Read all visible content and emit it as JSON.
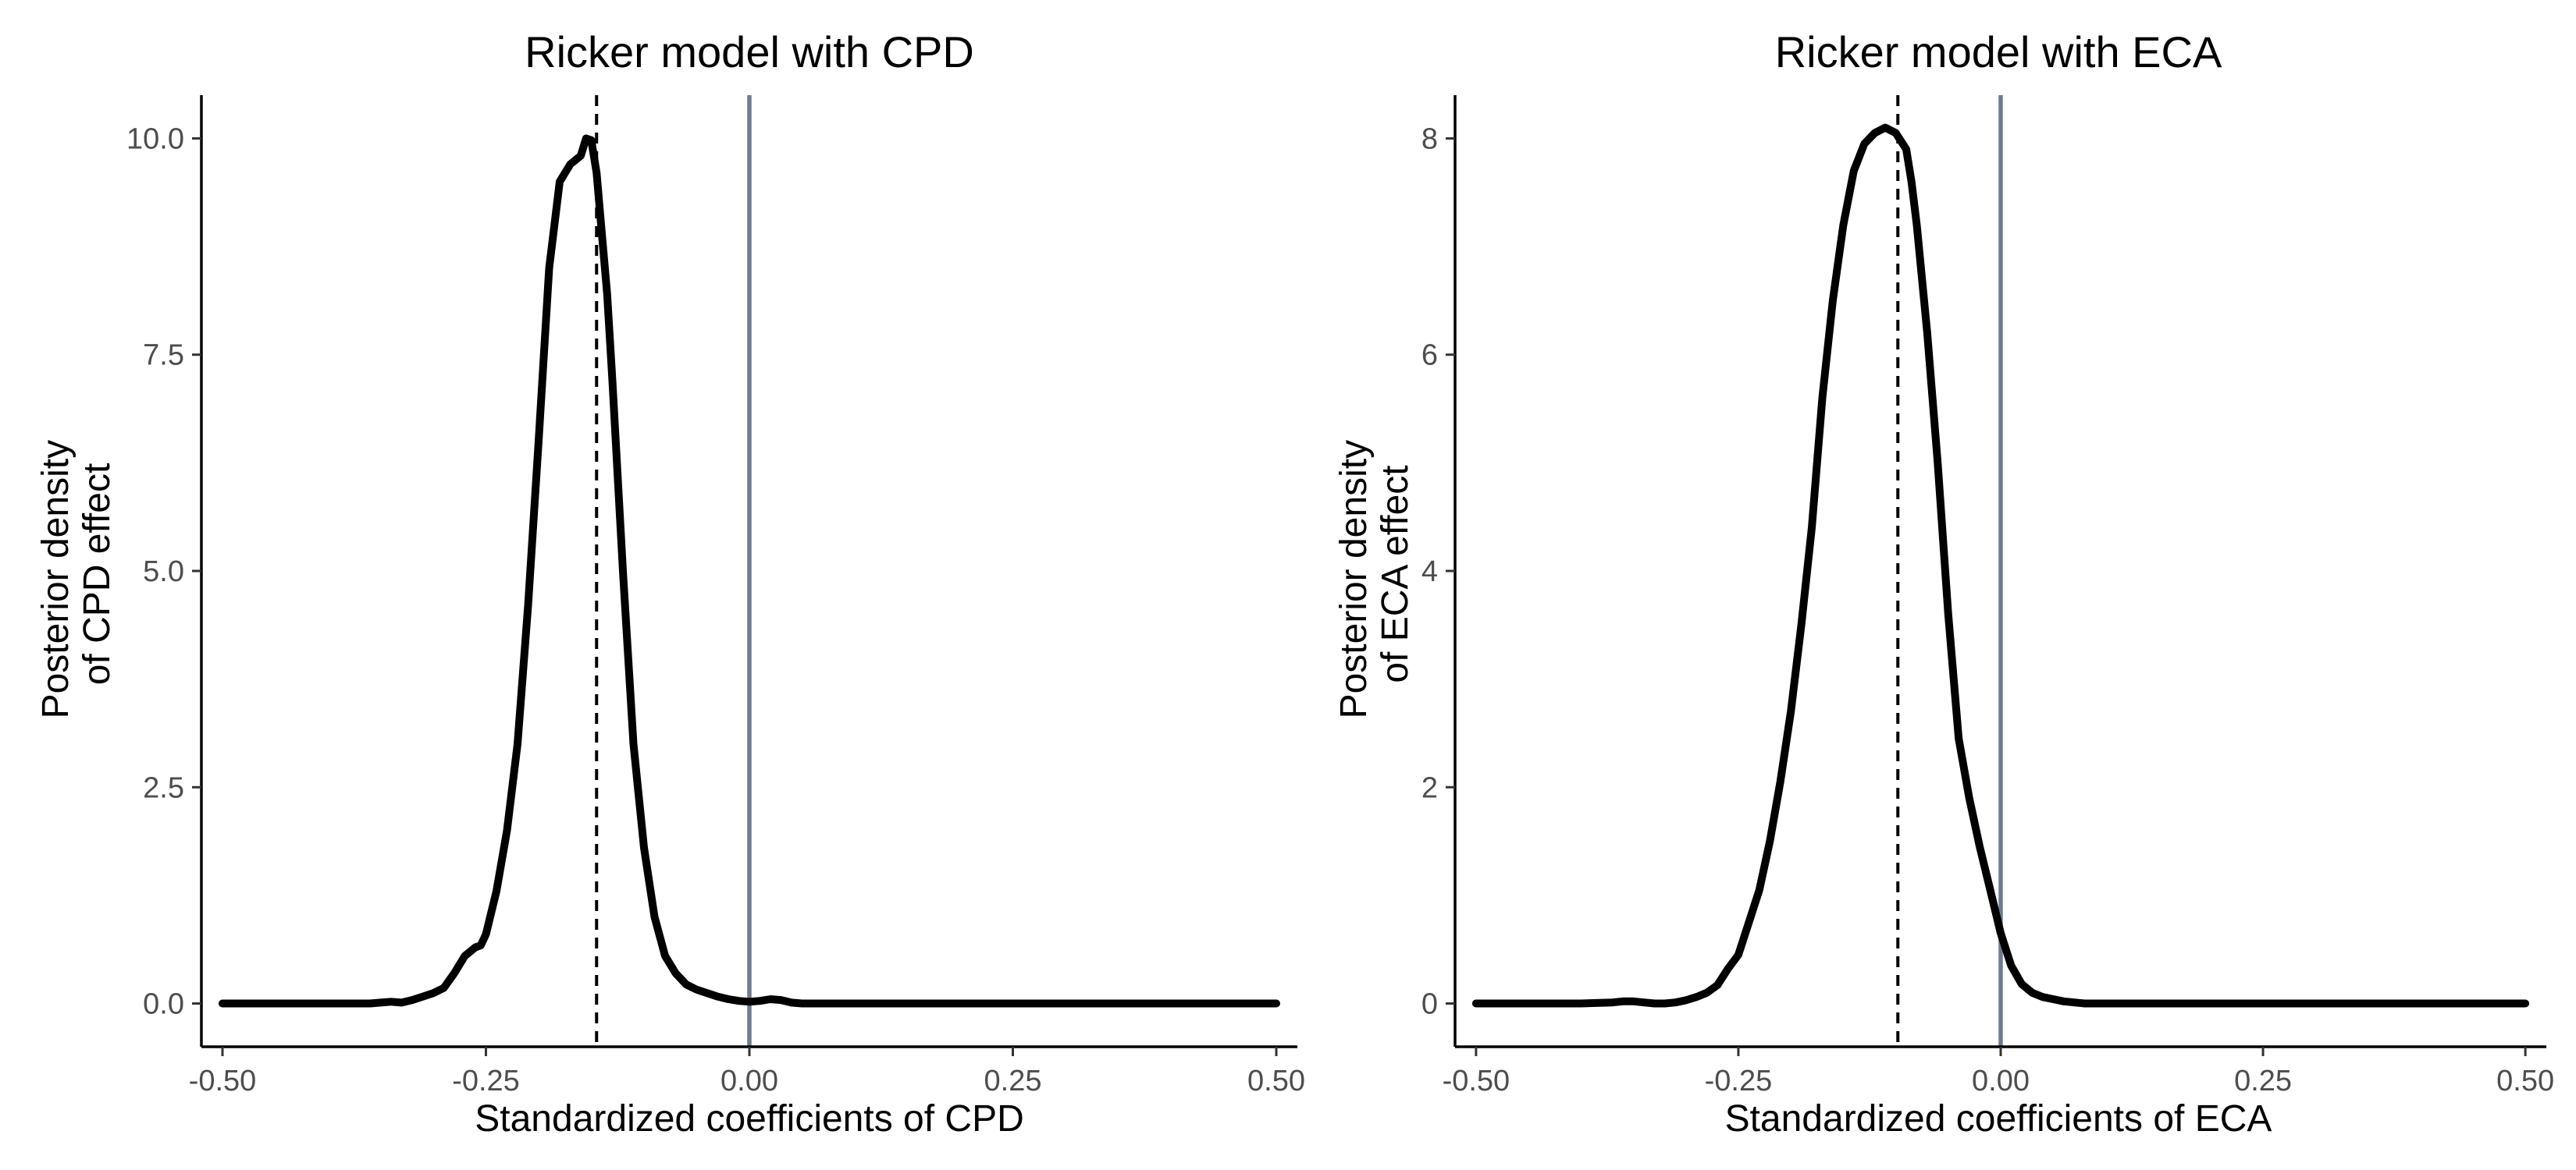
{
  "chart_data": [
    {
      "type": "line",
      "title": "Ricker model with CPD",
      "xlabel": "Standardized coefficients of CPD",
      "ylabel": [
        "Posterior density",
        "of CPD effect"
      ],
      "xlim": [
        -0.52,
        0.52
      ],
      "ylim": [
        -0.5,
        10.5
      ],
      "xticks": [
        -0.5,
        -0.25,
        0,
        0.25,
        0.5
      ],
      "xtick_labels": [
        "-0.50",
        "-0.25",
        "0.00",
        "0.25",
        "0.50"
      ],
      "yticks": [
        0,
        2.5,
        5,
        7.5,
        10
      ],
      "ytick_labels": [
        "0.0",
        "2.5",
        "5.0",
        "7.5",
        "10.0"
      ],
      "grid": false,
      "legend": "none",
      "reference_lines": [
        {
          "name": "zero",
          "x": 0,
          "style": "solid",
          "color": "#6e7c8f"
        },
        {
          "name": "posterior-mean",
          "x": -0.145,
          "style": "dashed",
          "color": "#000000"
        }
      ],
      "series": [
        {
          "color": "#000000",
          "x": [
            -0.5,
            -0.4,
            -0.36,
            -0.35,
            -0.34,
            -0.33,
            -0.32,
            -0.31,
            -0.3,
            -0.29,
            -0.28,
            -0.27,
            -0.26,
            -0.255,
            -0.25,
            -0.24,
            -0.23,
            -0.22,
            -0.21,
            -0.2,
            -0.19,
            -0.18,
            -0.17,
            -0.16,
            -0.155,
            -0.15,
            -0.145,
            -0.14,
            -0.135,
            -0.13,
            -0.12,
            -0.11,
            -0.1,
            -0.09,
            -0.08,
            -0.07,
            -0.06,
            -0.05,
            -0.04,
            -0.03,
            -0.02,
            -0.01,
            0,
            0.01,
            0.02,
            0.03,
            0.04,
            0.05,
            0.06,
            0.1,
            0.2,
            0.3,
            0.4,
            0.5
          ],
          "y": [
            0,
            0,
            0,
            0.01,
            0.02,
            0.01,
            0.04,
            0.08,
            0.12,
            0.18,
            0.35,
            0.55,
            0.65,
            0.67,
            0.8,
            1.3,
            2.0,
            3.0,
            4.6,
            6.5,
            8.5,
            9.5,
            9.7,
            9.8,
            10.0,
            9.98,
            9.6,
            8.9,
            8.2,
            7.2,
            5.0,
            3.0,
            1.8,
            1.0,
            0.55,
            0.35,
            0.22,
            0.16,
            0.12,
            0.08,
            0.05,
            0.03,
            0.02,
            0.03,
            0.05,
            0.04,
            0.01,
            0,
            0,
            0,
            0,
            0,
            0,
            0
          ]
        }
      ]
    },
    {
      "type": "line",
      "title": "Ricker model with ECA",
      "xlabel": "Standardized coefficients of ECA",
      "ylabel": [
        "Posterior density",
        "of ECA effect"
      ],
      "xlim": [
        -0.52,
        0.52
      ],
      "ylim": [
        -0.4,
        8.4
      ],
      "xticks": [
        -0.5,
        -0.25,
        0,
        0.25,
        0.5
      ],
      "xtick_labels": [
        "-0.50",
        "-0.25",
        "0.00",
        "0.25",
        "0.50"
      ],
      "yticks": [
        0,
        2,
        4,
        6,
        8
      ],
      "ytick_labels": [
        "0",
        "2",
        "4",
        "6",
        "8"
      ],
      "grid": false,
      "legend": "none",
      "reference_lines": [
        {
          "name": "zero",
          "x": 0,
          "style": "solid",
          "color": "#6e7c8f"
        },
        {
          "name": "posterior-mean",
          "x": -0.098,
          "style": "dashed",
          "color": "#000000"
        }
      ],
      "series": [
        {
          "color": "#000000",
          "x": [
            -0.5,
            -0.4,
            -0.37,
            -0.36,
            -0.35,
            -0.34,
            -0.33,
            -0.32,
            -0.31,
            -0.3,
            -0.29,
            -0.28,
            -0.27,
            -0.26,
            -0.25,
            -0.24,
            -0.23,
            -0.22,
            -0.21,
            -0.2,
            -0.19,
            -0.18,
            -0.17,
            -0.16,
            -0.15,
            -0.14,
            -0.13,
            -0.12,
            -0.11,
            -0.1,
            -0.09,
            -0.085,
            -0.08,
            -0.07,
            -0.06,
            -0.05,
            -0.04,
            -0.03,
            -0.02,
            -0.01,
            0,
            0.01,
            0.02,
            0.03,
            0.04,
            0.05,
            0.06,
            0.08,
            0.1,
            0.2,
            0.3,
            0.4,
            0.5
          ],
          "y": [
            0,
            0,
            0.01,
            0.02,
            0.02,
            0.01,
            0.0,
            0.0,
            0.01,
            0.03,
            0.06,
            0.1,
            0.17,
            0.32,
            0.45,
            0.75,
            1.05,
            1.5,
            2.05,
            2.7,
            3.5,
            4.4,
            5.6,
            6.5,
            7.2,
            7.7,
            7.95,
            8.05,
            8.1,
            8.05,
            7.9,
            7.6,
            7.2,
            6.2,
            5.0,
            3.6,
            2.45,
            1.9,
            1.45,
            1.05,
            0.65,
            0.35,
            0.18,
            0.1,
            0.06,
            0.04,
            0.02,
            0,
            0,
            0,
            0,
            0,
            0
          ]
        }
      ]
    }
  ]
}
